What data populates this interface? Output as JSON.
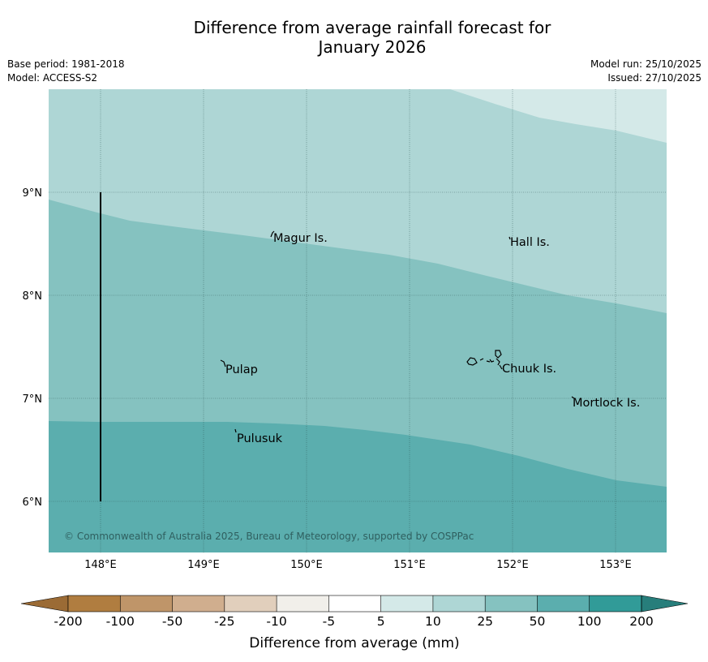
{
  "title_line1": "Difference from average rainfall forecast for",
  "title_line2": "January 2026",
  "base_period": "Base period: 1981-2018",
  "model": "Model: ACCESS-S2",
  "model_run": "Model run: 25/10/2025",
  "issued": "Issued: 27/10/2025",
  "lat_labels": [
    "9°N",
    "8°N",
    "7°N",
    "6°N"
  ],
  "lon_labels": [
    "148°E",
    "149°E",
    "150°E",
    "151°E",
    "152°E",
    "153°E"
  ],
  "places": [
    "Magur Is.",
    "Hall Is.",
    "Pulap",
    "Chuuk Is.",
    "Mortlock Is.",
    "Pulusuk"
  ],
  "copyright": "© Commonwealth of Australia 2025, Bureau of Meteorology, supported by COSPPac",
  "colorbar": {
    "ticks": [
      "-200",
      "-100",
      "-50",
      "-25",
      "-10",
      "-5",
      "5",
      "10",
      "25",
      "50",
      "100",
      "200"
    ],
    "colors": [
      "#b07d40",
      "#bf9569",
      "#d0ae8e",
      "#e1cfbc",
      "#f1efea",
      "#ffffff",
      "#d4e9e8",
      "#aed6d5",
      "#85c2c0",
      "#5baeae",
      "#319b98"
    ],
    "under_color": "#9b6b35",
    "over_color": "#277e7b",
    "label": "Difference from average (mm)"
  },
  "colors": {
    "band_5_10": "#d4e9e8",
    "band_10_25": "#aed6d5",
    "band_25_50": "#85c2c0",
    "band_50_100": "#5baeae"
  }
}
